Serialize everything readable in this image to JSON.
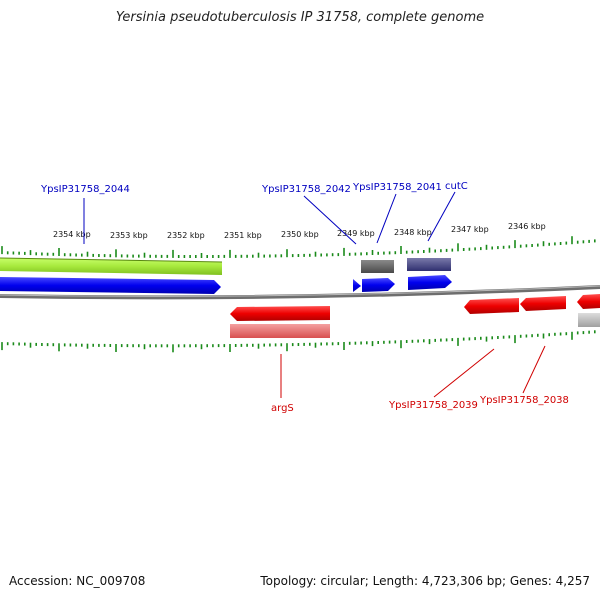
{
  "header": {
    "title": "Yersinia pseudotuberculosis IP 31758, complete genome"
  },
  "footer": {
    "accession": "Accession: NC_009708",
    "summary": "Topology: circular; Length: 4,723,306 bp; Genes: 4,257"
  },
  "scale": {
    "ticks": [
      {
        "label": "2354 kbp"
      },
      {
        "label": "2353 kbp"
      },
      {
        "label": "2352 kbp"
      },
      {
        "label": "2351 kbp"
      },
      {
        "label": "2350 kbp"
      },
      {
        "label": "2349 kbp"
      },
      {
        "label": "2348 kbp"
      },
      {
        "label": "2347 kbp"
      },
      {
        "label": "2346 kbp"
      }
    ]
  },
  "gene_labels": [
    {
      "name": "YpsIP31758_2044",
      "strand": "forward",
      "color": "#0000c0"
    },
    {
      "name": "YpsIP31758_2042",
      "strand": "forward",
      "color": "#0000c0"
    },
    {
      "name": "YpsIP31758_2041",
      "strand": "forward",
      "color": "#0000c0"
    },
    {
      "name": "cutC",
      "strand": "forward",
      "color": "#0000c0"
    },
    {
      "name": "argS",
      "strand": "reverse",
      "color": "#d00000"
    },
    {
      "name": "YpsIP31758_2039",
      "strand": "reverse",
      "color": "#d00000"
    },
    {
      "name": "YpsIP31758_2038",
      "strand": "reverse",
      "color": "#d00000"
    }
  ],
  "colors": {
    "forward_cds": "#0000ee",
    "reverse_cds": "#ee0000",
    "rna_feature": "#a6e83c",
    "backbone": "#888888",
    "tick": "#1a8a1a",
    "pseudo_forward": "#555566",
    "pseudo_reverse": "#e87878"
  }
}
